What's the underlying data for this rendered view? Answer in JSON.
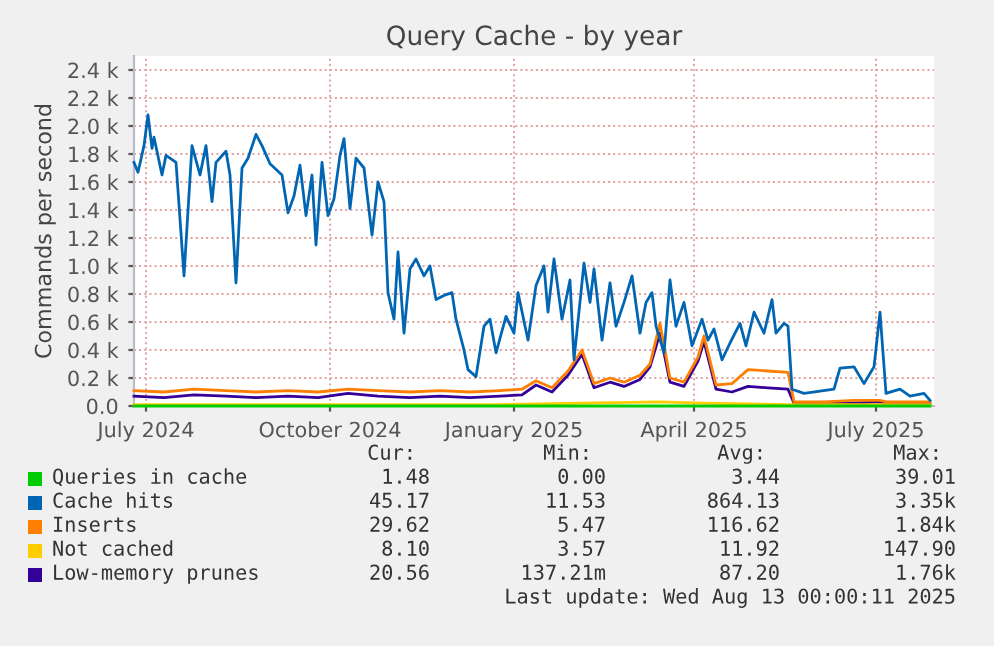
{
  "chart_data": {
    "type": "line",
    "title": "Query Cache - by year",
    "ylabel": "Commands per second",
    "xlim": [
      "2024-06-25",
      "2025-07-30"
    ],
    "ylim": [
      0,
      2500
    ],
    "xticks": [
      {
        "value": "2024-07-01",
        "label": "July 2024"
      },
      {
        "value": "2024-10-01",
        "label": "October 2024"
      },
      {
        "value": "2025-01-01",
        "label": "January 2025"
      },
      {
        "value": "2025-04-01",
        "label": "April 2025"
      },
      {
        "value": "2025-07-01",
        "label": "July 2025"
      }
    ],
    "yticks": [
      {
        "value": 0,
        "label": "0.0"
      },
      {
        "value": 200,
        "label": "0.2 k"
      },
      {
        "value": 400,
        "label": "0.4 k"
      },
      {
        "value": 600,
        "label": "0.6 k"
      },
      {
        "value": 800,
        "label": "0.8 k"
      },
      {
        "value": 1000,
        "label": "1.0 k"
      },
      {
        "value": 1200,
        "label": "1.2 k"
      },
      {
        "value": 1400,
        "label": "1.4 k"
      },
      {
        "value": 1600,
        "label": "1.6 k"
      },
      {
        "value": 1800,
        "label": "1.8 k"
      },
      {
        "value": 2000,
        "label": "2.0 k"
      },
      {
        "value": 2200,
        "label": "2.2 k"
      },
      {
        "value": 2400,
        "label": "2.4 k"
      }
    ],
    "grid": true,
    "legend": "bottom",
    "marker": "none",
    "line_style": "solid",
    "series": [
      {
        "name": "Queries in cache",
        "color": "#00cc00",
        "x": [
          "2024-06-25",
          "2024-08-25",
          "2024-10-25",
          "2024-12-25",
          "2025-02-25",
          "2025-04-25",
          "2025-05-21",
          "2025-07-28"
        ],
        "values": [
          0,
          0,
          0,
          0,
          0,
          0,
          0,
          0
        ]
      },
      {
        "name": "Cache hits",
        "color": "#0066b3",
        "x": [
          "2024-06-25",
          "2024-06-27",
          "2024-06-30",
          "2024-07-02",
          "2024-07-04",
          "2024-07-05",
          "2024-07-09",
          "2024-07-11",
          "2024-07-16",
          "2024-07-20",
          "2024-07-24",
          "2024-07-28",
          "2024-07-31",
          "2024-08-03",
          "2024-08-05",
          "2024-08-10",
          "2024-08-12",
          "2024-08-15",
          "2024-08-18",
          "2024-08-21",
          "2024-08-25",
          "2024-08-28",
          "2024-09-01",
          "2024-09-07",
          "2024-09-10",
          "2024-09-13",
          "2024-09-16",
          "2024-09-19",
          "2024-09-22",
          "2024-09-24",
          "2024-09-27",
          "2024-09-30",
          "2024-10-03",
          "2024-10-06",
          "2024-10-08",
          "2024-10-11",
          "2024-10-14",
          "2024-10-18",
          "2024-10-22",
          "2024-10-25",
          "2024-10-28",
          "2024-10-30",
          "2024-11-02",
          "2024-11-04",
          "2024-11-07",
          "2024-11-10",
          "2024-11-13",
          "2024-11-17",
          "2024-11-20",
          "2024-11-23",
          "2024-11-27",
          "2024-12-01",
          "2024-12-03",
          "2024-12-07",
          "2024-12-09",
          "2024-12-13",
          "2024-12-17",
          "2024-12-20",
          "2024-12-23",
          "2024-12-28",
          "2025-01-01",
          "2025-01-03",
          "2025-01-08",
          "2025-01-12",
          "2025-01-16",
          "2025-01-18",
          "2025-01-21",
          "2025-01-25",
          "2025-01-29",
          "2025-01-31",
          "2025-02-05",
          "2025-02-08",
          "2025-02-10",
          "2025-02-14",
          "2025-02-18",
          "2025-02-21",
          "2025-02-25",
          "2025-03-01",
          "2025-03-05",
          "2025-03-08",
          "2025-03-11",
          "2025-03-13",
          "2025-03-17",
          "2025-03-20",
          "2025-03-23",
          "2025-03-27",
          "2025-03-31",
          "2025-04-05",
          "2025-04-08",
          "2025-04-11",
          "2025-04-15",
          "2025-04-19",
          "2025-04-24",
          "2025-04-27",
          "2025-05-01",
          "2025-05-06",
          "2025-05-10",
          "2025-05-12",
          "2025-05-16",
          "2025-05-18",
          "2025-05-20",
          "2025-05-26",
          "2025-06-10",
          "2025-06-13",
          "2025-06-20",
          "2025-06-25",
          "2025-06-30",
          "2025-07-03",
          "2025-07-06",
          "2025-07-13",
          "2025-07-18",
          "2025-07-25",
          "2025-07-28"
        ],
        "values": [
          1740,
          1670,
          1860,
          2080,
          1840,
          1920,
          1650,
          1790,
          1740,
          930,
          1860,
          1650,
          1860,
          1460,
          1740,
          1820,
          1650,
          880,
          1700,
          1770,
          1940,
          1860,
          1730,
          1650,
          1380,
          1500,
          1720,
          1360,
          1650,
          1150,
          1740,
          1360,
          1480,
          1790,
          1910,
          1410,
          1770,
          1700,
          1220,
          1600,
          1460,
          810,
          620,
          1100,
          520,
          980,
          1050,
          930,
          1000,
          760,
          790,
          810,
          620,
          400,
          260,
          210,
          570,
          620,
          380,
          640,
          520,
          810,
          470,
          860,
          1000,
          670,
          1050,
          620,
          900,
          330,
          1020,
          740,
          980,
          470,
          880,
          570,
          740,
          930,
          520,
          740,
          810,
          570,
          380,
          900,
          570,
          740,
          430,
          620,
          470,
          550,
          330,
          450,
          590,
          430,
          670,
          520,
          760,
          520,
          590,
          570,
          120,
          90,
          120,
          270,
          280,
          160,
          280,
          670,
          90,
          120,
          70,
          90,
          40
        ]
      },
      {
        "name": "Inserts",
        "color": "#ff8000",
        "x": [
          "2024-06-25",
          "2024-07-10",
          "2024-07-25",
          "2024-08-10",
          "2024-08-25",
          "2024-09-10",
          "2024-09-25",
          "2024-10-10",
          "2024-10-25",
          "2024-11-10",
          "2024-11-25",
          "2024-12-10",
          "2024-12-25",
          "2025-01-05",
          "2025-01-12",
          "2025-01-20",
          "2025-01-28",
          "2025-02-04",
          "2025-02-10",
          "2025-02-18",
          "2025-02-25",
          "2025-03-05",
          "2025-03-10",
          "2025-03-15",
          "2025-03-20",
          "2025-03-27",
          "2025-04-03",
          "2025-04-06",
          "2025-04-12",
          "2025-04-20",
          "2025-04-28",
          "2025-05-08",
          "2025-05-18",
          "2025-05-21",
          "2025-06-05",
          "2025-06-20",
          "2025-07-03",
          "2025-07-06",
          "2025-07-20",
          "2025-07-28"
        ],
        "values": [
          110,
          100,
          120,
          110,
          100,
          110,
          100,
          120,
          110,
          100,
          110,
          100,
          110,
          120,
          180,
          130,
          250,
          400,
          160,
          200,
          170,
          220,
          300,
          590,
          200,
          170,
          350,
          500,
          150,
          160,
          260,
          250,
          240,
          30,
          30,
          40,
          40,
          30,
          30,
          30
        ]
      },
      {
        "name": "Not cached",
        "color": "#ffcc00",
        "x": [
          "2024-06-25",
          "2024-09-25",
          "2024-12-25",
          "2025-02-04",
          "2025-03-15",
          "2025-04-06",
          "2025-05-18",
          "2025-05-21",
          "2025-07-28"
        ],
        "values": [
          10,
          10,
          10,
          20,
          30,
          20,
          10,
          10,
          10
        ]
      },
      {
        "name": "Low-memory prunes",
        "color": "#330099",
        "x": [
          "2024-06-25",
          "2024-07-10",
          "2024-07-25",
          "2024-08-10",
          "2024-08-25",
          "2024-09-10",
          "2024-09-25",
          "2024-10-10",
          "2024-10-25",
          "2024-11-10",
          "2024-11-25",
          "2024-12-10",
          "2024-12-25",
          "2025-01-05",
          "2025-01-12",
          "2025-01-20",
          "2025-01-28",
          "2025-02-04",
          "2025-02-10",
          "2025-02-18",
          "2025-02-25",
          "2025-03-05",
          "2025-03-10",
          "2025-03-15",
          "2025-03-20",
          "2025-03-27",
          "2025-04-03",
          "2025-04-06",
          "2025-04-12",
          "2025-04-20",
          "2025-04-28",
          "2025-05-08",
          "2025-05-18",
          "2025-05-21",
          "2025-06-05",
          "2025-06-20",
          "2025-07-03",
          "2025-07-06",
          "2025-07-20",
          "2025-07-28"
        ],
        "values": [
          70,
          60,
          80,
          70,
          60,
          70,
          60,
          90,
          70,
          60,
          70,
          60,
          70,
          80,
          150,
          100,
          220,
          370,
          130,
          170,
          140,
          190,
          280,
          520,
          170,
          140,
          320,
          460,
          120,
          100,
          140,
          130,
          120,
          20,
          20,
          20,
          30,
          20,
          20,
          20
        ]
      }
    ],
    "annotations": [
      "Cur:",
      "Min:",
      "Avg:",
      "Max:",
      "1.48",
      "0.00",
      "3.44",
      "39.01",
      "45.17",
      "11.53",
      "864.13",
      "3.35k",
      "29.62",
      "5.47",
      "116.62",
      "1.84k",
      "8.10",
      "3.57",
      "11.92",
      "147.90",
      "20.56",
      "137.21m",
      "87.20",
      "1.76k",
      "Last update: Wed Aug 13 00:00:11 2025"
    ]
  }
}
